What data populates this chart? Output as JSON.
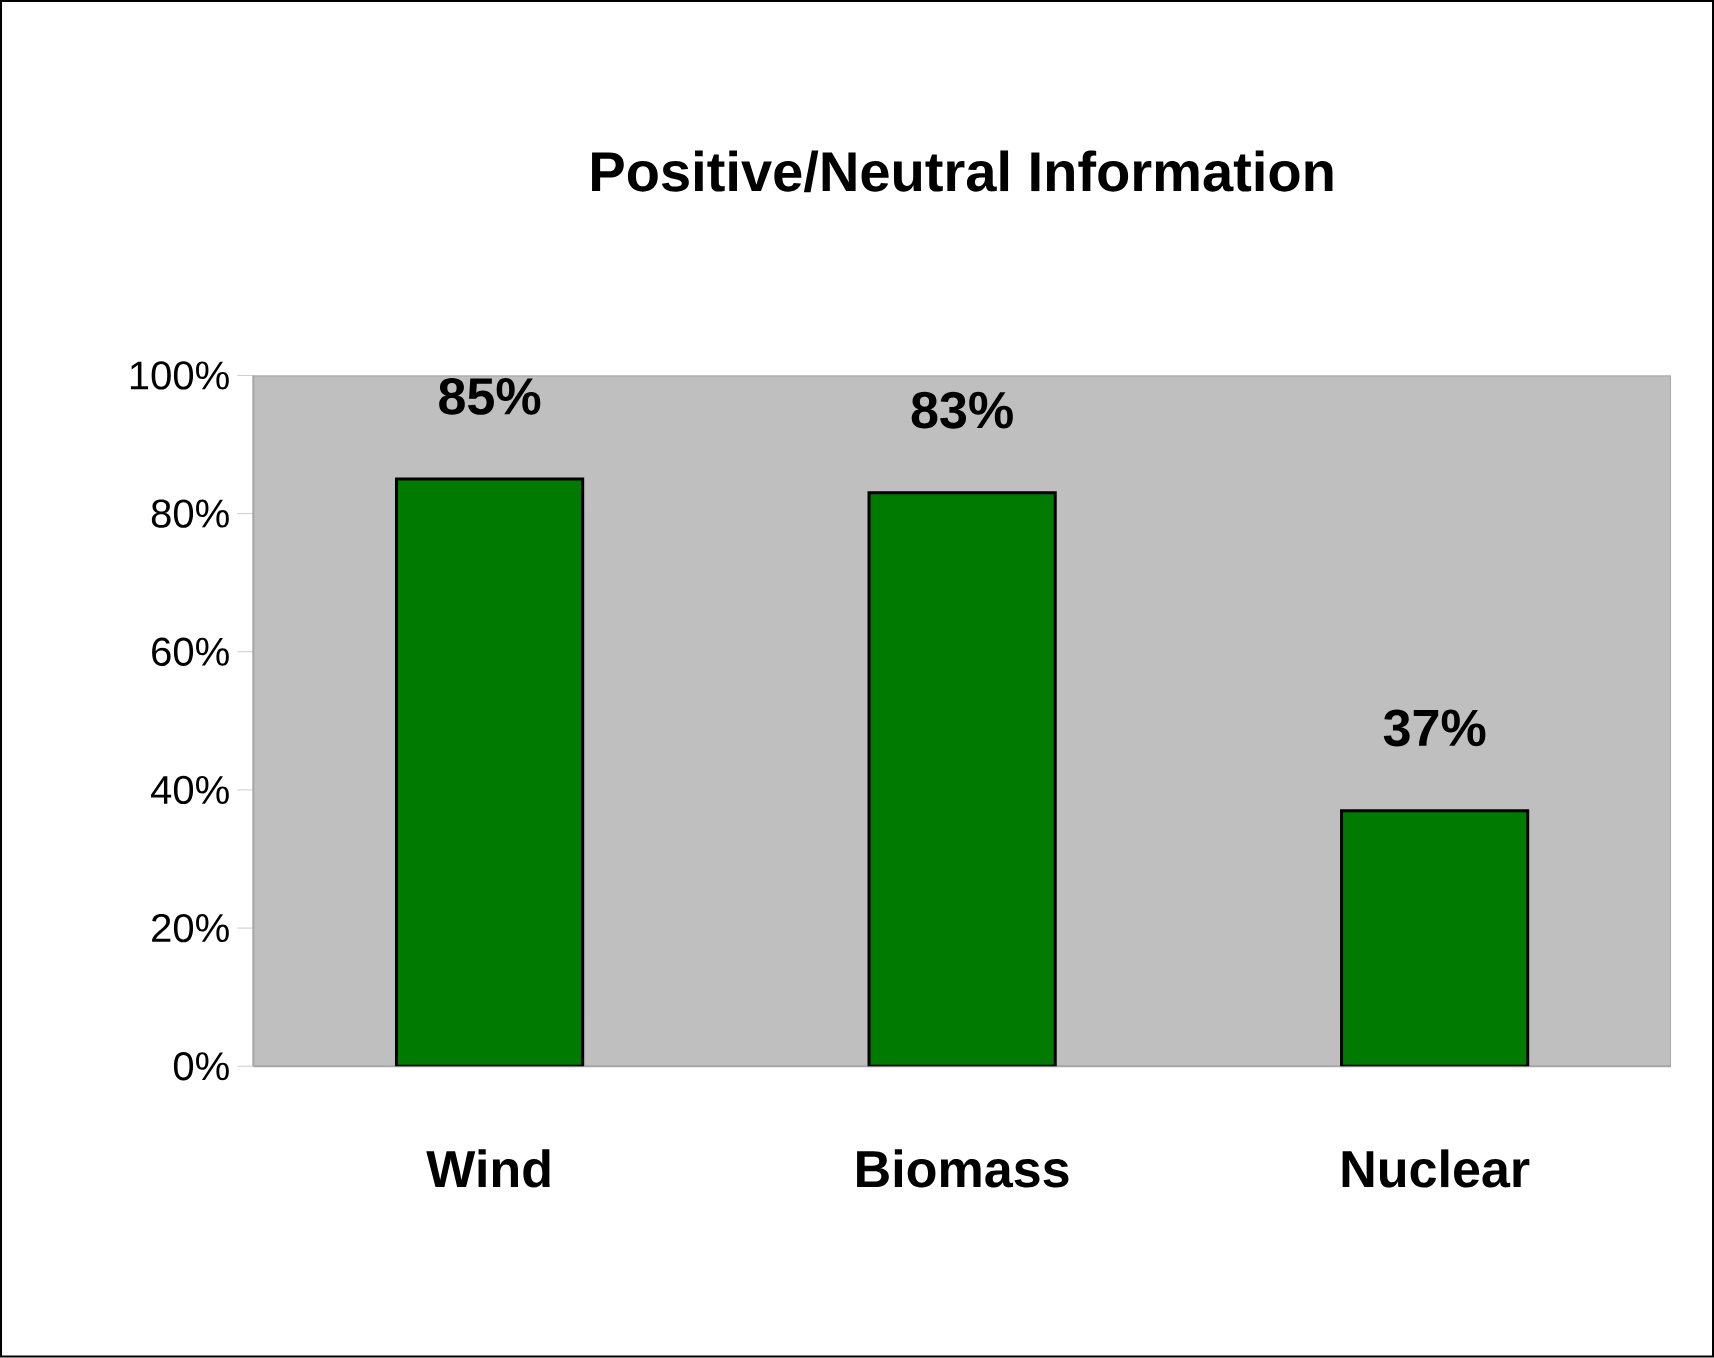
{
  "chart_data": {
    "type": "bar",
    "title": "Positive/Neutral Information",
    "categories": [
      "Wind",
      "Biomass",
      "Nuclear"
    ],
    "values": [
      85,
      83,
      37
    ],
    "color": "#007a00",
    "value_labels": [
      "85%",
      "83%",
      "37%"
    ],
    "ylim": [
      0,
      100
    ],
    "yticks": [
      {
        "value": 0,
        "label": "0%"
      },
      {
        "value": 20,
        "label": "20%"
      },
      {
        "value": 40,
        "label": "40%"
      },
      {
        "value": 60,
        "label": "60%"
      },
      {
        "value": 80,
        "label": "80%"
      },
      {
        "value": 100,
        "label": "100%"
      }
    ],
    "grid": false
  }
}
